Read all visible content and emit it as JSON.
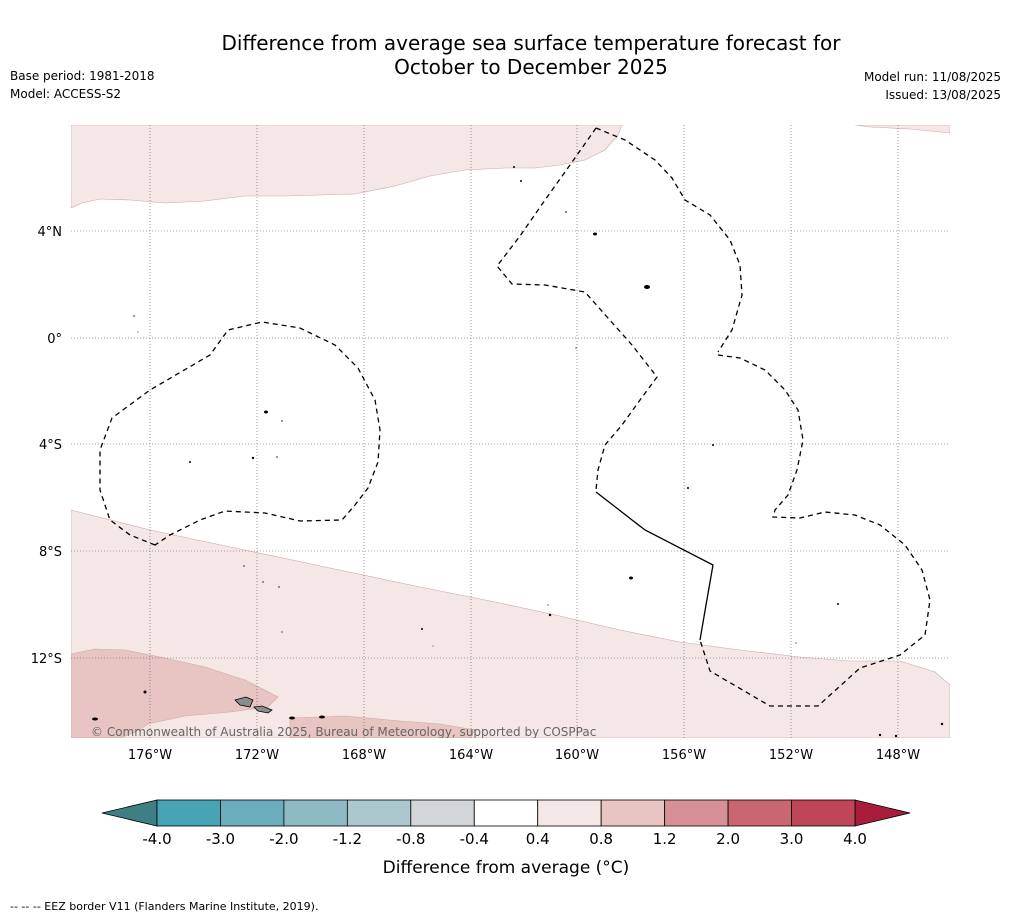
{
  "title": {
    "line1": "Difference from average sea surface temperature forecast for",
    "line2": "October to December 2025"
  },
  "info": {
    "base_period": "Base period: 1981-2018",
    "model": "Model: ACCESS-S2",
    "model_run": "Model run: 11/08/2025",
    "issued": "Issued: 13/08/2025"
  },
  "map": {
    "lon_labels": [
      "176°W",
      "172°W",
      "168°W",
      "164°W",
      "160°W",
      "156°W",
      "152°W",
      "148°W"
    ],
    "lat_labels": [
      "4°N",
      "0°",
      "4°S",
      "8°S",
      "12°S"
    ],
    "copyright": "© Commonwealth of Australia 2025, Bureau of Meteorology, supported by COSPPac",
    "colors": {
      "band_0_4_0_8": "#f5e7e5",
      "band_0_8_1_2": "#e8c5c2",
      "land": "#8c8c8c"
    }
  },
  "colorbar": {
    "tick_labels": [
      "-4.0",
      "-3.0",
      "-2.0",
      "-1.2",
      "-0.8",
      "-0.4",
      "0.4",
      "0.8",
      "1.2",
      "2.0",
      "3.0",
      "4.0"
    ],
    "label": "Difference from average (°C)",
    "under_color": "#3e7f86",
    "over_color": "#a81d3a",
    "colors": [
      "#48a4b4",
      "#6aaebd",
      "#8ebac6",
      "#abc8ce",
      "#d2d6d8",
      "#ffffff",
      "#f5e7e5",
      "#e8c5c2",
      "#d69096",
      "#c96670",
      "#bf4656"
    ]
  },
  "footer": "--  --  -- EEZ border V11 (Flanders Marine Institute, 2019)."
}
